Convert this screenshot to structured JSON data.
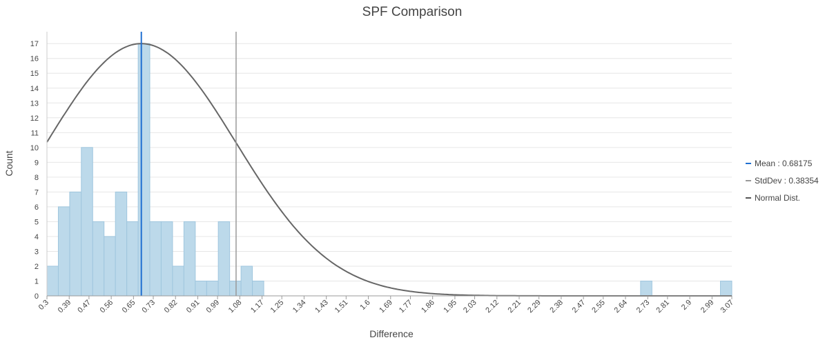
{
  "chart_data": {
    "type": "bar",
    "title": "SPF Comparison",
    "xlabel": "Difference",
    "ylabel": "Count",
    "xlim": [
      0.3,
      3.07
    ],
    "ylim": [
      0,
      17.8
    ],
    "bin_width": 0.0462,
    "y_ticks": [
      0,
      1,
      2,
      3,
      4,
      5,
      6,
      7,
      8,
      9,
      10,
      11,
      12,
      13,
      14,
      15,
      16,
      17
    ],
    "x_ticks": [
      {
        "value": 0.3,
        "label": "0.3"
      },
      {
        "value": 0.39,
        "label": "0.39"
      },
      {
        "value": 0.47,
        "label": "0.47"
      },
      {
        "value": 0.56,
        "label": "0.56"
      },
      {
        "value": 0.65,
        "label": "0.65"
      },
      {
        "value": 0.73,
        "label": "0.73"
      },
      {
        "value": 0.82,
        "label": "0.82"
      },
      {
        "value": 0.91,
        "label": "0.91"
      },
      {
        "value": 0.99,
        "label": "0.99"
      },
      {
        "value": 1.08,
        "label": "1.08"
      },
      {
        "value": 1.17,
        "label": "1.17"
      },
      {
        "value": 1.25,
        "label": "1.25"
      },
      {
        "value": 1.34,
        "label": "1.34"
      },
      {
        "value": 1.43,
        "label": "1.43"
      },
      {
        "value": 1.51,
        "label": "1.51"
      },
      {
        "value": 1.6,
        "label": "1.6"
      },
      {
        "value": 1.69,
        "label": "1.69"
      },
      {
        "value": 1.77,
        "label": "1.77"
      },
      {
        "value": 1.86,
        "label": "1.86"
      },
      {
        "value": 1.95,
        "label": "1.95"
      },
      {
        "value": 2.03,
        "label": "2.03"
      },
      {
        "value": 2.12,
        "label": "2.12"
      },
      {
        "value": 2.21,
        "label": "2.21"
      },
      {
        "value": 2.29,
        "label": "2.29"
      },
      {
        "value": 2.38,
        "label": "2.38"
      },
      {
        "value": 2.47,
        "label": "2.47"
      },
      {
        "value": 2.55,
        "label": "2.55"
      },
      {
        "value": 2.64,
        "label": "2.64"
      },
      {
        "value": 2.73,
        "label": "2.73"
      },
      {
        "value": 2.81,
        "label": "2.81"
      },
      {
        "value": 2.9,
        "label": "2.9"
      },
      {
        "value": 2.99,
        "label": "2.99"
      },
      {
        "value": 3.07,
        "label": "3.07"
      }
    ],
    "bins": [
      {
        "x0": 0.3,
        "x1": 0.346,
        "count": 2
      },
      {
        "x0": 0.346,
        "x1": 0.392,
        "count": 6
      },
      {
        "x0": 0.392,
        "x1": 0.439,
        "count": 7
      },
      {
        "x0": 0.439,
        "x1": 0.485,
        "count": 10
      },
      {
        "x0": 0.485,
        "x1": 0.531,
        "count": 5
      },
      {
        "x0": 0.531,
        "x1": 0.577,
        "count": 4
      },
      {
        "x0": 0.577,
        "x1": 0.623,
        "count": 7
      },
      {
        "x0": 0.623,
        "x1": 0.669,
        "count": 5
      },
      {
        "x0": 0.669,
        "x1": 0.716,
        "count": 17
      },
      {
        "x0": 0.716,
        "x1": 0.762,
        "count": 5
      },
      {
        "x0": 0.762,
        "x1": 0.808,
        "count": 5
      },
      {
        "x0": 0.808,
        "x1": 0.854,
        "count": 2
      },
      {
        "x0": 0.854,
        "x1": 0.9,
        "count": 5
      },
      {
        "x0": 0.9,
        "x1": 0.946,
        "count": 1
      },
      {
        "x0": 0.946,
        "x1": 0.993,
        "count": 1
      },
      {
        "x0": 0.993,
        "x1": 1.039,
        "count": 5
      },
      {
        "x0": 1.039,
        "x1": 1.085,
        "count": 1
      },
      {
        "x0": 1.085,
        "x1": 1.131,
        "count": 2
      },
      {
        "x0": 1.131,
        "x1": 1.177,
        "count": 1
      },
      {
        "x0": 2.701,
        "x1": 2.747,
        "count": 1
      },
      {
        "x0": 3.024,
        "x1": 3.07,
        "count": 1
      }
    ],
    "mean": 0.68175,
    "stddev": 0.38354,
    "stddev_line_x": 1.065,
    "normal_peak": 17,
    "legend_position": "right",
    "grid": true,
    "legend": [
      {
        "label": "Mean : 0.68175",
        "color": "#1f6fd1"
      },
      {
        "label": "StdDev : 0.38354",
        "color": "#999999"
      },
      {
        "label": "Normal Dist.",
        "color": "#555555"
      }
    ],
    "colors": {
      "bar_fill": "#bcd9ea",
      "bar_stroke": "#9fc6de",
      "mean_line": "#1f6fd1",
      "std_line": "#999999",
      "curve": "#666666",
      "grid": "#e6e6e6"
    }
  }
}
